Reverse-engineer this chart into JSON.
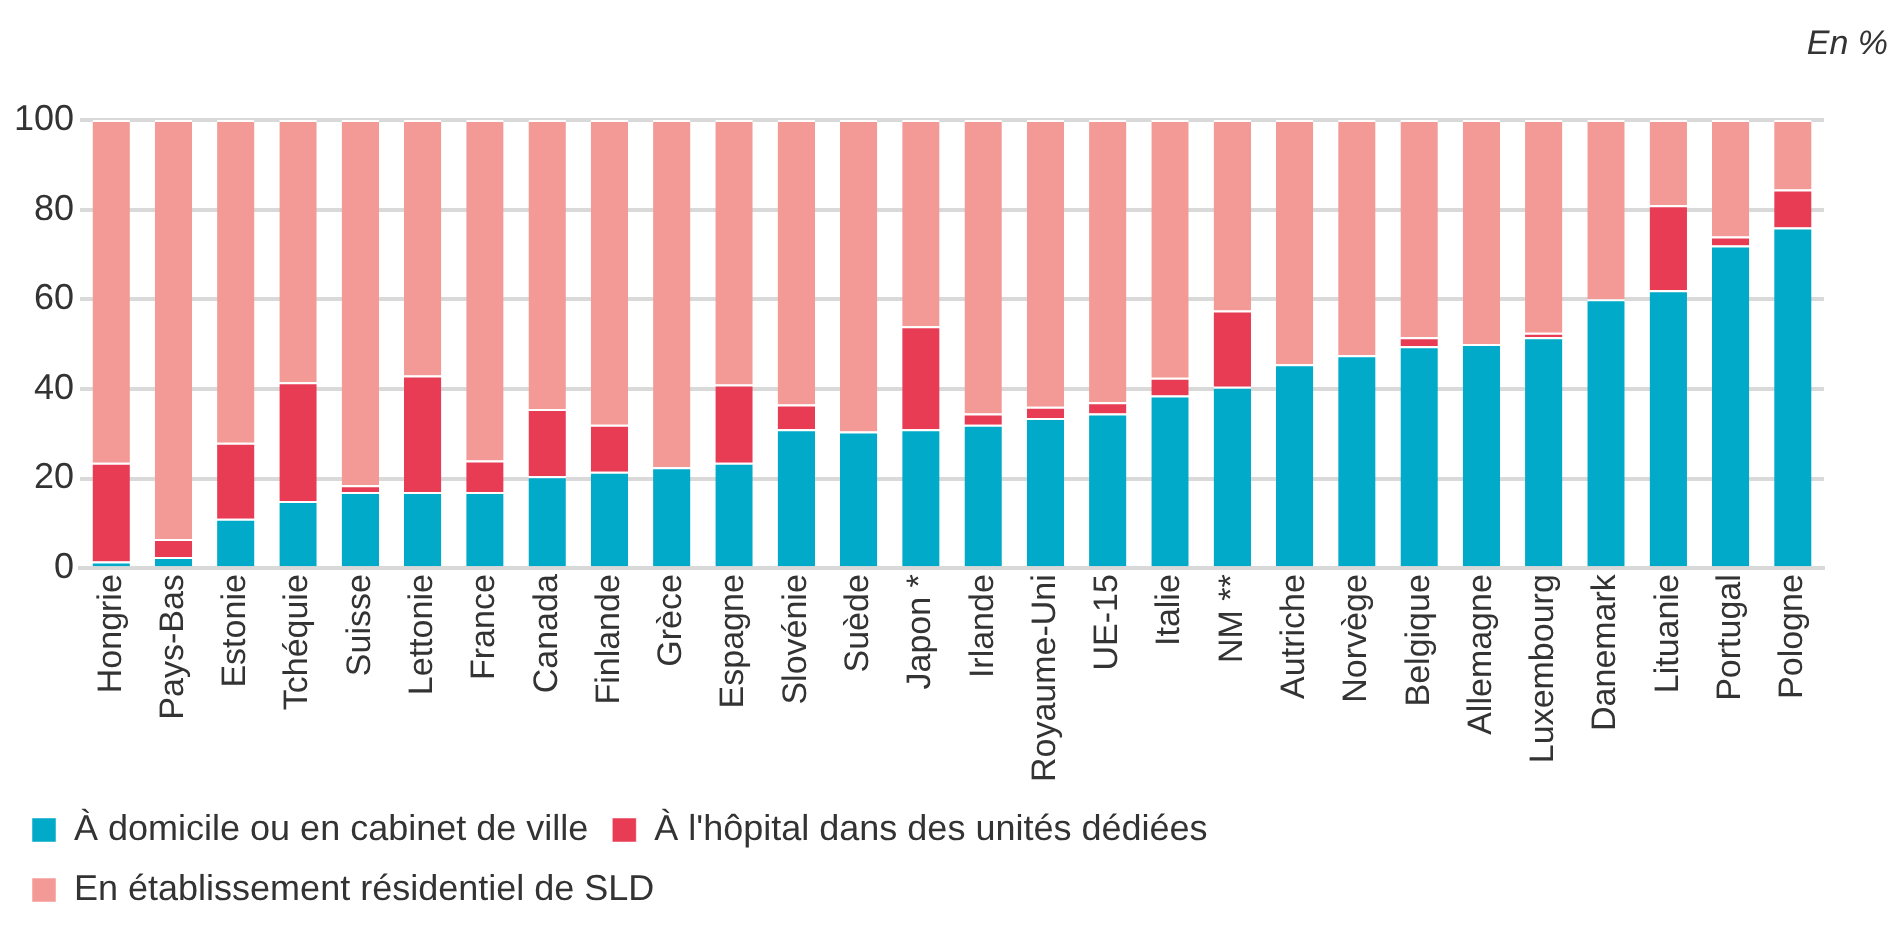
{
  "chart_data": {
    "type": "bar",
    "stacked": true,
    "categories": [
      "Hongrie",
      "Pays-Bas",
      "Estonie",
      "Tchéquie",
      "Suisse",
      "Lettonie",
      "France",
      "Canada",
      "Finlande",
      "Grèce",
      "Espagne",
      "Slovénie",
      "Suède",
      "Japon *",
      "Irlande",
      "Royaume-Uni",
      "UE-15",
      "Italie",
      "NM **",
      "Autriche",
      "Norvège",
      "Belgique",
      "Allemagne",
      "Luxembourg",
      "Danemark",
      "Lituanie",
      "Portugal",
      "Pologne"
    ],
    "series": [
      {
        "name": "À domicile ou en cabinet de ville",
        "color": "#00aac8",
        "values": [
          1.5,
          2.5,
          11,
          15,
          17,
          17,
          17,
          20.5,
          21.5,
          22.5,
          23.5,
          31,
          30.5,
          31,
          32,
          33.5,
          34.5,
          38.5,
          40.5,
          45.5,
          47.5,
          49.5,
          50,
          51.5,
          60,
          62,
          72,
          76
        ]
      },
      {
        "name": "À l'hôpital dans des unités dédiées",
        "color": "#e83c55",
        "values": [
          22,
          4,
          17,
          26.5,
          1.5,
          26,
          7,
          15,
          10.5,
          0,
          17.5,
          5.5,
          0,
          23,
          2.5,
          2.5,
          2.5,
          4,
          17,
          0,
          0,
          2,
          0,
          1,
          0,
          19,
          2,
          8.5
        ]
      },
      {
        "name": "En établissement résidentiel de SLD",
        "color": "#f39a96",
        "values": [
          76.5,
          93.5,
          72,
          58.5,
          81.5,
          57,
          76,
          64.5,
          68,
          77.5,
          59,
          63.5,
          69.5,
          46,
          65.5,
          64,
          63,
          57.5,
          42.5,
          54.5,
          52.5,
          48.5,
          50,
          47.5,
          40,
          19,
          26,
          15.5
        ]
      }
    ],
    "ylim": [
      0,
      100
    ],
    "yticks": [
      0,
      20,
      40,
      60,
      80,
      100
    ],
    "grid": "y",
    "legend": "bottom",
    "annotations": [
      "En %"
    ]
  }
}
